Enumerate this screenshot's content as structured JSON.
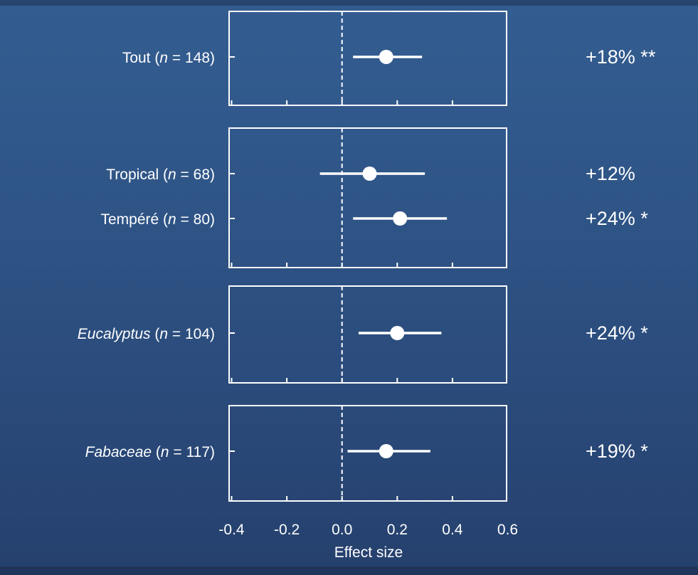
{
  "chart_data": {
    "type": "scatter",
    "xlabel": "Effect size",
    "xlim": [
      -0.4,
      0.6
    ],
    "xticks": [
      "-0.4",
      "-0.2",
      "0.0",
      "0.2",
      "0.4",
      "0.6"
    ],
    "reference_line": 0.0,
    "colors": {
      "background": "#2f5587",
      "marks": "#ffffff"
    },
    "panels": [
      {
        "rows": [
          {
            "label_name": "Tout",
            "n": "148",
            "italic": false,
            "estimate": 0.16,
            "ci": [
              0.04,
              0.29
            ],
            "pct": "+18% **"
          }
        ]
      },
      {
        "rows": [
          {
            "label_name": "Tropical",
            "n": "68",
            "italic": false,
            "estimate": 0.1,
            "ci": [
              -0.08,
              0.3
            ],
            "pct": "+12%"
          },
          {
            "label_name": "Tempéré",
            "n": "80",
            "italic": false,
            "estimate": 0.21,
            "ci": [
              0.04,
              0.38
            ],
            "pct": "+24% *"
          }
        ]
      },
      {
        "rows": [
          {
            "label_name": "Eucalyptus",
            "n": "104",
            "italic": true,
            "estimate": 0.2,
            "ci": [
              0.06,
              0.36
            ],
            "pct": "+24% *"
          }
        ]
      },
      {
        "rows": [
          {
            "label_name": "Fabaceae",
            "n": "117",
            "italic": true,
            "estimate": 0.16,
            "ci": [
              0.02,
              0.32
            ],
            "pct": "+19% *"
          }
        ]
      }
    ]
  }
}
